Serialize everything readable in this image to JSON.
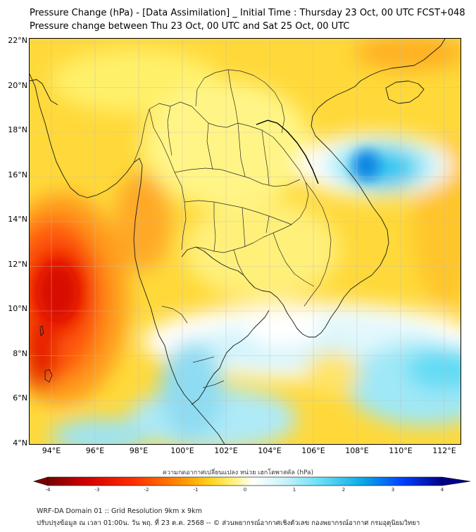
{
  "title_line1": "Pressure Change (hPa) - [Data Assimilation] _ Initial Time : Thursday 23 Oct, 00 UTC FCST+048",
  "title_line2": "Pressure change between Thu 23 Oct, 00 UTC and Sat 25 Oct, 00 UTC",
  "map": {
    "lon_range": [
      93,
      112.8
    ],
    "lat_range": [
      4,
      22.2
    ],
    "lat_ticks": [
      "22°N",
      "20°N",
      "18°N",
      "16°N",
      "14°N",
      "12°N",
      "10°N",
      "8°N",
      "6°N",
      "4°N"
    ],
    "lon_ticks": [
      "94°E",
      "96°E",
      "98°E",
      "100°E",
      "102°E",
      "104°E",
      "106°E",
      "108°E",
      "110°E",
      "112°E"
    ],
    "field_features": [
      {
        "name": "pressure-fall-max",
        "lon": 94.4,
        "lat": 10.9,
        "value": -3.2
      },
      {
        "name": "pressure-fall-andaman",
        "lon": 93.5,
        "lat": 8.5,
        "value": -2.8
      },
      {
        "name": "pressure-rise-max",
        "lon": 108.3,
        "lat": 16.4,
        "value": 2.4
      },
      {
        "name": "pressure-rise-south",
        "lon": 101.5,
        "lat": 5.5,
        "value": 1.3
      }
    ]
  },
  "colorbar": {
    "label": "ความกดอากาศเปลี่ยนแปลง หน่วย เฮกโตพาสคัล (hPa)",
    "min": -4,
    "max": 4,
    "tick_labels": [
      "-4",
      "-3",
      "-2",
      "-1",
      "0",
      "1",
      "2",
      "3",
      "4"
    ],
    "colors": [
      "#7a0000",
      "#d40000",
      "#ff3000",
      "#ff8a00",
      "#ffd21e",
      "#fff27a",
      "#ffffff",
      "#c9f3fb",
      "#5fdcf4",
      "#0aa8e6",
      "#0040ff",
      "#00008a"
    ]
  },
  "footer_line1": "WRF-DA Domain 01 :: Grid Resolution 9km x 9km",
  "footer_line2": "ปรับปรุงข้อมูล ณ เวลา 01:00น. วัน พฤ. ที่ 23 ต.ค. 2568 -- © ส่วนพยากรณ์อากาศเชิงตัวเลข กองพยากรณ์อากาศ กรมอุตุนิยมวิทยา"
}
